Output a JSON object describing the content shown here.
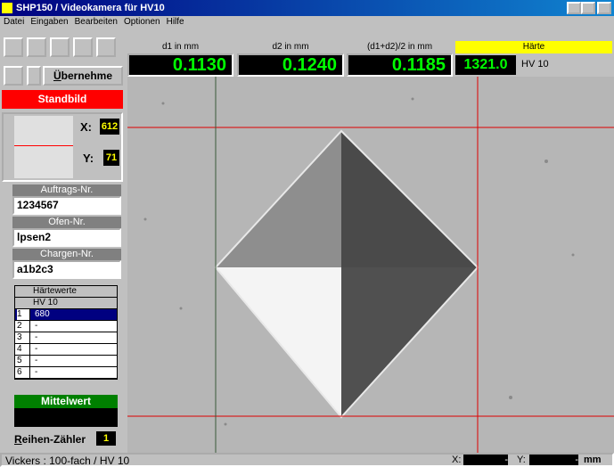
{
  "window": {
    "title": "SHP150 / Videokamera für HV10"
  },
  "menu": [
    "Datei",
    "Eingaben",
    "Bearbeiten",
    "Optionen",
    "Hilfe"
  ],
  "toolbar": {
    "button": "Übernehme"
  },
  "mode": "Standbild",
  "cursor": {
    "x_label": "X:",
    "x": "612",
    "y_label": "Y:",
    "y": "71"
  },
  "fields": [
    {
      "label": "Auftrags-Nr.",
      "value": "1234567"
    },
    {
      "label": "Ofen-Nr.",
      "value": "lpsen2"
    },
    {
      "label": "Chargen-Nr.",
      "value": "a1b2c3"
    }
  ],
  "table": {
    "header": "Härtewerte",
    "unit": "HV 10",
    "rows": [
      [
        "1",
        "680"
      ],
      [
        "2",
        "-"
      ],
      [
        "3",
        "-"
      ],
      [
        "4",
        "-"
      ],
      [
        "5",
        "-"
      ],
      [
        "6",
        "-"
      ]
    ]
  },
  "mean": {
    "label": "Mittelwert"
  },
  "counter": {
    "label": "Reihen-Zähler",
    "value": "1"
  },
  "measurements": [
    {
      "label": "d1 in mm",
      "value": "0.1130"
    },
    {
      "label": "d2 in mm",
      "value": "0.1240"
    },
    {
      "label": "(d1+d2)/2 in mm",
      "value": "0.1185"
    }
  ],
  "hardness": {
    "label": "Härte",
    "value": "1321.0",
    "unit": "HV 10"
  },
  "status": {
    "text": "Vickers : 100-fach / HV 10",
    "x_label": "X:",
    "x": "-",
    "y_label": "Y:",
    "y": "-",
    "unit": "mm"
  }
}
